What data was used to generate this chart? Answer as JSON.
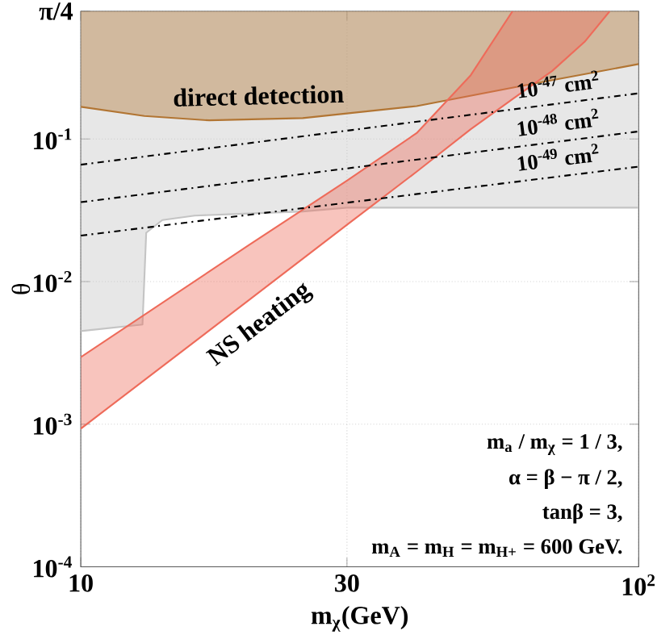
{
  "chart_data": {
    "type": "line",
    "xlabel": "m$_{χ}$(GeV)",
    "ylabel": "θ",
    "log": "xy",
    "grid": true,
    "xlim": [
      10,
      100
    ],
    "ylim": [
      0.0001,
      0.7854
    ],
    "xticks": [
      10,
      30,
      {
        "value": 100,
        "label": "10$^{2}$"
      }
    ],
    "yticks": [
      {
        "value": 0.0001,
        "label": "10$^{-4}$"
      },
      {
        "value": 0.001,
        "label": "10$^{-3}$"
      },
      {
        "value": 0.01,
        "label": "10$^{-2}$"
      },
      {
        "value": 0.1,
        "label": "10$^{-1}$"
      },
      {
        "value": 0.7854,
        "label": "π/4"
      }
    ],
    "series": [
      {
        "color": "#c4c4c4",
        "x": [
          10,
          12.9,
          13.1,
          14,
          16,
          20,
          25,
          30,
          100
        ],
        "values": [
          0.0045,
          0.005,
          0.022,
          0.027,
          0.029,
          0.03,
          0.031,
          0.033,
          0.033
        ],
        "lower": [
          0.0045,
          0.005,
          0.022,
          0.027,
          0.029,
          0.03,
          0.031,
          0.033,
          0.033
        ],
        "upper": [
          0.7854,
          0.7854,
          0.7854,
          0.7854,
          0.7854,
          0.7854,
          0.7854,
          0.7854,
          0.7854
        ]
      },
      {
        "name": "direct detection",
        "color": "#b27533",
        "x": [
          10,
          13,
          17,
          25,
          40,
          65,
          100
        ],
        "values": [
          0.168,
          0.145,
          0.135,
          0.14,
          0.17,
          0.245,
          0.335
        ],
        "lower": [
          0.168,
          0.145,
          0.135,
          0.14,
          0.17,
          0.245,
          0.335
        ],
        "upper": [
          0.7854,
          0.7854,
          0.7854,
          0.7854,
          0.7854,
          0.7854,
          0.7854
        ]
      },
      {
        "name": "NS heating",
        "color": "#ee6b5a",
        "x": [
          10,
          20,
          30,
          40,
          50,
          59.4,
          70,
          80,
          88.7
        ],
        "values": [
          0.00093,
          0.0074,
          0.025,
          0.059,
          0.117,
          0.19,
          0.3,
          0.48,
          0.7854
        ],
        "lower": [
          0.00093,
          0.0074,
          0.025,
          0.059,
          0.117,
          0.19,
          0.3,
          0.48,
          0.7854
        ],
        "upper": [
          0.00295,
          0.018,
          0.051,
          0.11,
          0.28,
          0.7854,
          0.7854,
          0.7854,
          0.7854
        ]
      },
      {
        "color": "#ee6b5a",
        "x": [
          10,
          20,
          30,
          40,
          50,
          59.4
        ],
        "values": [
          0.00295,
          0.018,
          0.051,
          0.11,
          0.28,
          0.7854
        ]
      },
      {
        "name": "10$^{-47}$ cm$^{2}$",
        "color": "#000000",
        "line_style": "dashdot",
        "x": [
          10,
          100
        ],
        "values": [
          0.066,
          0.209
        ]
      },
      {
        "name": "10$^{-48}$ cm$^{2}$",
        "color": "#000000",
        "line_style": "dashdot",
        "x": [
          10,
          100
        ],
        "values": [
          0.036,
          0.113
        ]
      },
      {
        "name": "10$^{-49}$ cm$^{2}$",
        "color": "#000000",
        "line_style": "dashdot",
        "x": [
          10,
          100
        ],
        "values": [
          0.021,
          0.064
        ]
      }
    ],
    "annotations": [
      "m$_{a}$ / m$_{χ}$ = 1 / 3,",
      "α = β − π / 2,",
      "tanβ  =  3,",
      "m$_{A}$ = m$_{H}$ = m$_{H+}$ =  600 GeV."
    ]
  }
}
